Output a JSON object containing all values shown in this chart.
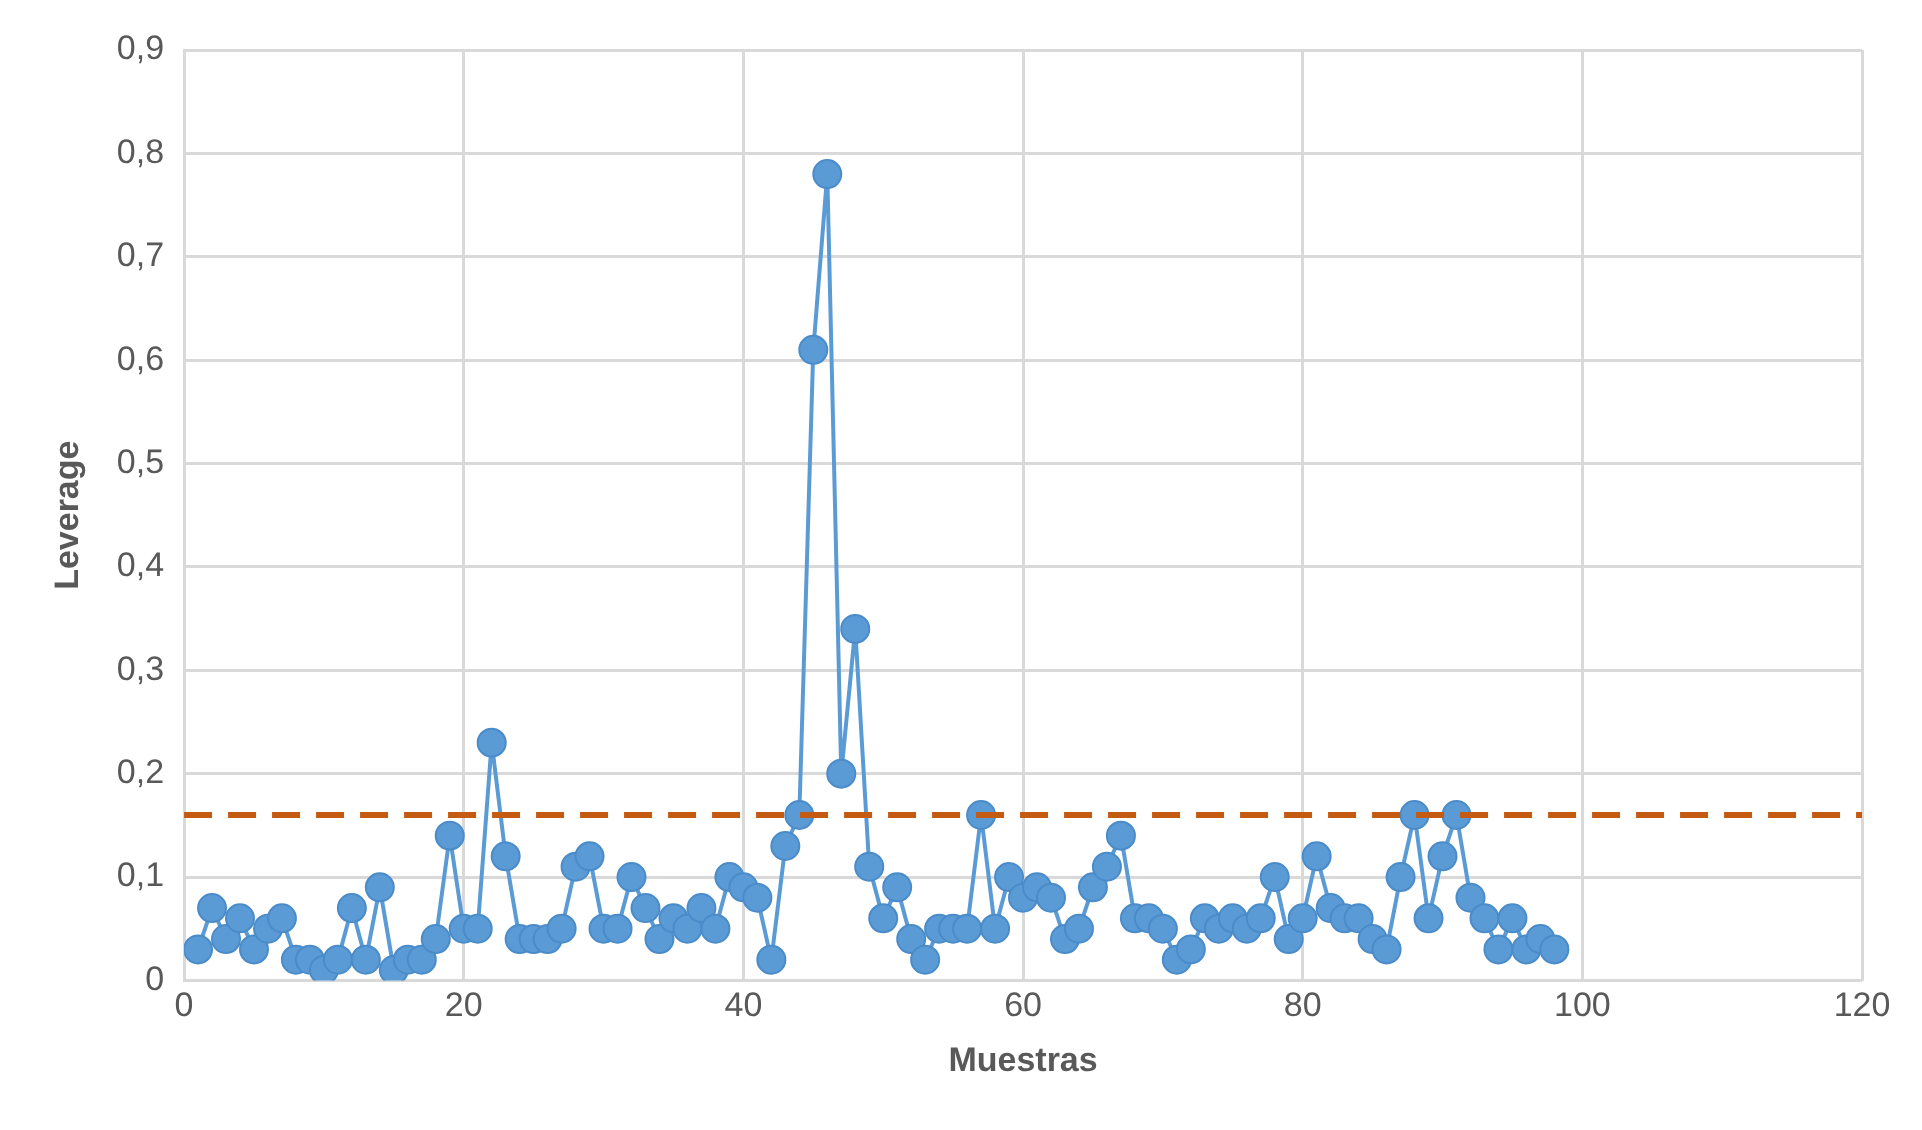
{
  "chart_data": {
    "type": "line",
    "xlabel": "Muestras",
    "ylabel": "Leverage",
    "x": [
      1,
      2,
      3,
      4,
      5,
      6,
      7,
      8,
      9,
      10,
      11,
      12,
      13,
      14,
      15,
      16,
      17,
      18,
      19,
      20,
      21,
      22,
      23,
      24,
      25,
      26,
      27,
      28,
      29,
      30,
      31,
      32,
      33,
      34,
      35,
      36,
      37,
      38,
      39,
      40,
      41,
      42,
      43,
      44,
      45,
      46,
      47,
      48,
      49,
      50,
      51,
      52,
      53,
      54,
      55,
      56,
      57,
      58,
      59,
      60,
      61,
      62,
      63,
      64,
      65,
      66,
      67,
      68,
      69,
      70,
      71,
      72,
      73,
      74,
      75,
      76,
      77,
      78,
      79,
      80,
      81,
      82,
      83,
      84,
      85,
      86,
      87,
      88,
      89,
      90,
      91,
      92,
      93,
      94,
      95,
      96,
      97,
      98
    ],
    "series": [
      {
        "color": "#5b9bd5",
        "values": [
          0.03,
          0.07,
          0.04,
          0.06,
          0.03,
          0.05,
          0.06,
          0.02,
          0.02,
          0.01,
          0.02,
          0.07,
          0.02,
          0.09,
          0.01,
          0.02,
          0.02,
          0.04,
          0.14,
          0.05,
          0.05,
          0.23,
          0.12,
          0.04,
          0.04,
          0.04,
          0.05,
          0.11,
          0.12,
          0.05,
          0.05,
          0.1,
          0.07,
          0.04,
          0.06,
          0.05,
          0.07,
          0.05,
          0.1,
          0.09,
          0.08,
          0.02,
          0.13,
          0.16,
          0.61,
          0.78,
          0.2,
          0.34,
          0.11,
          0.06,
          0.09,
          0.04,
          0.02,
          0.05,
          0.05,
          0.05,
          0.16,
          0.05,
          0.1,
          0.08,
          0.09,
          0.08,
          0.04,
          0.05,
          0.09,
          0.11,
          0.14,
          0.06,
          0.06,
          0.05,
          0.02,
          0.03,
          0.06,
          0.05,
          0.06,
          0.05,
          0.06,
          0.1,
          0.04,
          0.06,
          0.12,
          0.07,
          0.06,
          0.06,
          0.04,
          0.03,
          0.1,
          0.16,
          0.06,
          0.12,
          0.16,
          0.08,
          0.06,
          0.03,
          0.06,
          0.03,
          0.04,
          0.03
        ]
      }
    ],
    "xlim": [
      0,
      120
    ],
    "xticks": [
      0,
      20,
      40,
      60,
      80,
      100,
      120
    ],
    "ylim": [
      0,
      0.9
    ],
    "yticks": [
      0,
      {
        "value": 0.1,
        "label": "0,1"
      },
      {
        "value": 0.2,
        "label": "0,2"
      },
      {
        "value": 0.3,
        "label": "0,3"
      },
      {
        "value": 0.4,
        "label": "0,4"
      },
      {
        "value": 0.5,
        "label": "0,5"
      },
      {
        "value": 0.6,
        "label": "0,6"
      },
      {
        "value": 0.7,
        "label": "0,7"
      },
      {
        "value": 0.8,
        "label": "0,8"
      },
      {
        "value": 0.9,
        "label": "0,9"
      }
    ],
    "ref_lines": [
      {
        "axis": "y",
        "value": 0.16,
        "color": "#c55a11",
        "line_style": "dashed"
      }
    ],
    "grid": true,
    "legend": false,
    "marker": "circle",
    "line_style": "solid"
  }
}
